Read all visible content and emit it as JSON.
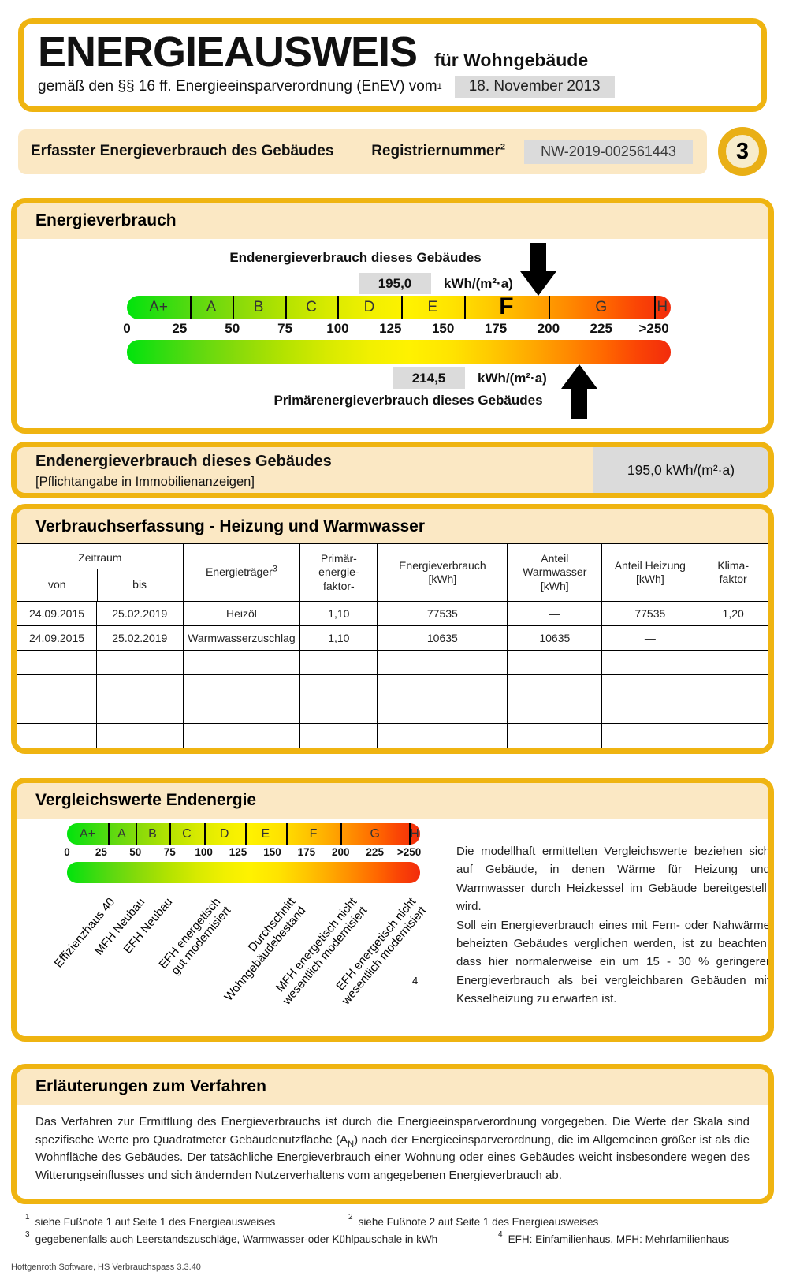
{
  "page": {
    "title": "ENERGIEAUSWEIS",
    "title_suffix": "für Wohngebäude",
    "subtitle": "gemäß den §§ 16 ff. Energieeinsparverordnung (EnEV) vom",
    "subtitle_sup": "1",
    "date": "18. November 2013",
    "software": "Hottgenroth Software, HS Verbrauchspass 3.3.40"
  },
  "info_band": {
    "title": "Erfasster Energieverbrauch des Gebäudes",
    "reg_label": "Registriernummer",
    "reg_sup": "2",
    "reg_value": "NW-2019-002561443",
    "page_number": "3"
  },
  "scale": {
    "letters": [
      "A+",
      "A",
      "B",
      "C",
      "D",
      "E",
      "F",
      "G",
      "H"
    ],
    "bounds": [
      0,
      30,
      50,
      75,
      100,
      130,
      160,
      200,
      250,
      258
    ],
    "ticks": [
      {
        "label": "0",
        "value": 0
      },
      {
        "label": "25",
        "value": 25
      },
      {
        "label": "50",
        "value": 50
      },
      {
        "label": "75",
        "value": 75
      },
      {
        "label": "100",
        "value": 100
      },
      {
        "label": "125",
        "value": 125
      },
      {
        "label": "150",
        "value": 150
      },
      {
        "label": "175",
        "value": 175
      },
      {
        "label": "200",
        "value": 200
      },
      {
        "label": "225",
        "value": 225
      },
      {
        "label": ">250",
        "value": 250
      }
    ],
    "active_letter": "F",
    "max_value": 258
  },
  "energieverbrauch": {
    "title": "Energieverbrauch",
    "end_label": "Endenergieverbrauch dieses Gebäudes",
    "end_value": "195,0",
    "end_value_num": 195.0,
    "unit": "kWh/(m²·a)",
    "primary_value": "214,5",
    "primary_value_num": 214.5,
    "primary_label": "Primärenergieverbrauch dieses Gebäudes"
  },
  "endenergie": {
    "title": "Endenergieverbrauch dieses Gebäudes",
    "subtitle": "[Pflichtangabe in Immobilienanzeigen]",
    "value": "195,0 kWh/(m²·a)"
  },
  "verbrauch_table": {
    "title": "Verbrauchserfassung - Heizung und Warmwasser",
    "h_zeitraum": "Zeitraum",
    "h_von": "von",
    "h_bis": "bis",
    "h_traeger": "Energieträger",
    "h_traeger_sup": "3",
    "h_pef_1": "Primär-",
    "h_pef_2": "energie-",
    "h_pef_3": "faktor-",
    "h_ev_1": "Energieverbrauch",
    "h_ev_2": "[kWh]",
    "h_ww_1": "Anteil",
    "h_ww_2": "Warmwasser",
    "h_ww_3": "[kWh]",
    "h_hz_1": "Anteil Heizung",
    "h_hz_2": "[kWh]",
    "h_kf_1": "Klima-",
    "h_kf_2": "faktor",
    "rows": [
      [
        "24.09.2015",
        "25.02.2019",
        "Heizöl",
        "1,10",
        "77535",
        "—",
        "77535",
        "1,20"
      ],
      [
        "24.09.2015",
        "25.02.2019",
        "Warmwasserzuschlag",
        "1,10",
        "10635",
        "10635",
        "—",
        ""
      ]
    ],
    "empty_row_count": 4
  },
  "vergleich": {
    "title": "Vergleichswerte Endenergie",
    "labels": [
      {
        "lines": [
          "Effizienzhaus 40"
        ],
        "value": 30
      },
      {
        "lines": [
          "MFH Neubau"
        ],
        "value": 52
      },
      {
        "lines": [
          "EFH Neubau"
        ],
        "value": 72
      },
      {
        "lines": [
          "EFH energetisch",
          "gut modernisiert"
        ],
        "value": 107
      },
      {
        "lines": [
          "Durchschnitt",
          "Wohngebäudebestand"
        ],
        "value": 162
      },
      {
        "lines": [
          "MFH energetisch nicht",
          "wesentlich modernisiert"
        ],
        "value": 207
      },
      {
        "lines": [
          "EFH energetisch nicht",
          "wesentlich modernisiert"
        ],
        "value": 250
      }
    ],
    "footnote_mark": "4",
    "para1": "Die modellhaft ermittelten Vergleichswerte beziehen sich auf Gebäude, in denen Wärme für Heizung und Warmwasser durch Heizkessel im Gebäude bereitgestellt wird.",
    "para2": "Soll ein Energieverbrauch eines mit Fern- oder Nahwärme beheizten Gebäudes verglichen werden, ist zu beachten, dass hier normalerweise ein um 15 - 30 % geringerer Energieverbrauch als bei vergleichbaren Gebäuden mit Kesselheizung zu erwarten ist."
  },
  "erlaeuterungen": {
    "title": "Erläuterungen zum Verfahren",
    "text_1": "Das Verfahren zur Ermittlung des Energieverbrauchs ist durch die Energieeinsparverordnung vorgegeben. Die Werte der Skala sind spezifische Werte pro Quadratmeter Gebäudenutzfläche (A",
    "text_sub": "N",
    "text_2": ") nach der Energieeinsparverordnung, die im Allgemeinen größer ist als die Wohnfläche des Gebäudes. Der tatsächliche Energieverbrauch einer Wohnung oder eines Gebäudes weicht insbesondere wegen des Witterungseinflusses und sich ändernden Nutzerverhaltens vom angegebenen Energieverbrauch ab."
  },
  "footnotes": [
    {
      "mark": "1",
      "text": "siehe Fußnote 1 auf Seite 1 des Energieausweises"
    },
    {
      "mark": "2",
      "text": "siehe Fußnote 2 auf Seite 1 des Energieausweises"
    },
    {
      "mark": "3",
      "text": "gegebenenfalls auch Leerstandszuschläge, Warmwasser-oder Kühlpauschale in kWh"
    },
    {
      "mark": "4",
      "text": "EFH: Einfamilienhaus, MFH: Mehrfamilienhaus"
    }
  ],
  "colors": {
    "frame_yellow": "#EFB411",
    "header_cream": "#FBE8C4",
    "value_box_gray": "#DBDBDB",
    "scale_green": "#00e40c",
    "scale_yellow": "#fff200",
    "scale_red": "#f22c0c",
    "arrow_black": "#000000"
  }
}
